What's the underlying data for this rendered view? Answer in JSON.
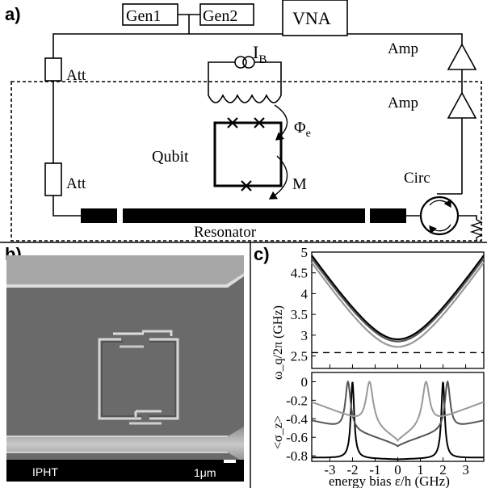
{
  "panels": {
    "a": "a)",
    "b": "b)",
    "c": "c)"
  },
  "circuit": {
    "gen1": "Gen1",
    "gen2": "Gen2",
    "vna": "VNA",
    "att_top": "Att",
    "att_bottom": "Att",
    "amp_top": "Amp",
    "amp_bottom": "Amp",
    "bias_current": "I",
    "bias_current_sub": "B",
    "flux": "Φ",
    "flux_sub": "e",
    "qubit": "Qubit",
    "mutual": "M",
    "circulator": "Circ",
    "resonator": "Resonator"
  },
  "micrograph": {
    "institute": "IPHT",
    "scale_bar": "1μm"
  },
  "chart_data": [
    {
      "type": "line",
      "title": "",
      "ylabel": "ω_q/2π (GHz)",
      "ylim": [
        2.2,
        5.0
      ],
      "yticks": [
        "5",
        "4.5",
        "4",
        "3.5",
        "3",
        "2.5"
      ],
      "xlim": [
        -3.8,
        3.8
      ],
      "series": [
        {
          "values_x": [
            -3.8,
            -3,
            -2,
            -1,
            0,
            1,
            2,
            3,
            3.8
          ],
          "values_y": [
            4.92,
            4.35,
            3.68,
            3.13,
            2.9,
            3.13,
            3.68,
            4.35,
            4.92
          ]
        },
        {
          "values_x": [
            -3.8,
            -3,
            -2,
            -1,
            0,
            1,
            2,
            3,
            3.8
          ],
          "values_y": [
            4.85,
            4.29,
            3.62,
            3.07,
            2.85,
            3.07,
            3.62,
            4.29,
            4.85
          ]
        },
        {
          "values_x": [
            -3.8,
            -3,
            -2,
            -1,
            0,
            1,
            2,
            3,
            3.8
          ],
          "values_y": [
            4.75,
            4.18,
            3.5,
            2.93,
            2.72,
            2.93,
            3.5,
            4.18,
            4.75
          ]
        }
      ],
      "reference_line": 2.58
    },
    {
      "type": "line",
      "title": "",
      "xlabel": "energy bias ε/h (GHz)",
      "ylabel": "<σ_z>",
      "xlim": [
        -3.8,
        3.8
      ],
      "ylim": [
        -0.86,
        0.1
      ],
      "xticks": [
        "-3",
        "-2",
        "-1",
        "0",
        "1",
        "2",
        "3"
      ],
      "yticks": [
        "0",
        "-0.2",
        "-0.4",
        "-0.6",
        "-0.8"
      ],
      "series": [
        {
          "note_x": [
            -3.8,
            -2.0,
            0,
            2.0,
            3.8
          ],
          "note_y": [
            -0.82,
            0.0,
            -0.84,
            0.0,
            -0.82
          ]
        },
        {
          "note_x": [
            -3.8,
            -2.2,
            0,
            2.2,
            3.8
          ],
          "note_y": [
            -0.42,
            0.0,
            -0.7,
            0.0,
            -0.42
          ]
        },
        {
          "note_x": [
            -3.8,
            -1.25,
            0,
            1.25,
            3.8
          ],
          "note_y": [
            -0.22,
            0.0,
            -0.65,
            0.0,
            -0.22
          ]
        }
      ]
    }
  ]
}
